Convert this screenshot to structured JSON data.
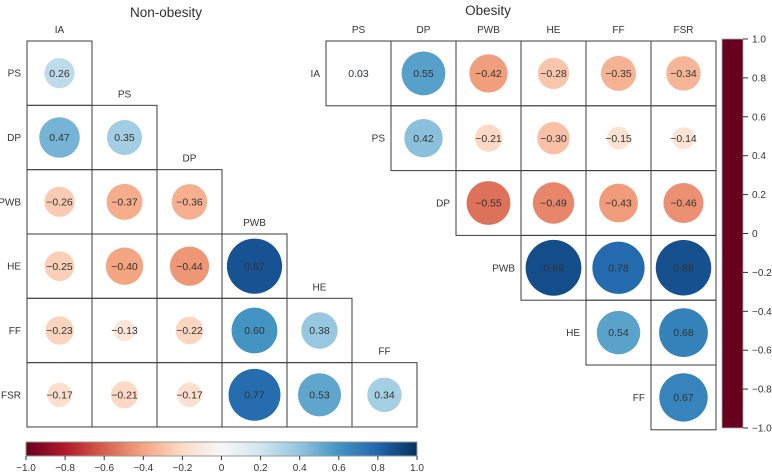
{
  "figure": {
    "background": "#ffffff",
    "grid_color": "#3d3d3d",
    "text_color": "#333333",
    "white_label_color": "#fdfdfd"
  },
  "chart_data": [
    {
      "type": "heatmap",
      "subtype": "correlation-bubble-matrix",
      "title": "Non-obesity",
      "triangle": "lower",
      "column_headers": [
        "IA",
        "PS",
        "DP",
        "PWB",
        "HE",
        "FF"
      ],
      "row_labels": [
        "PS",
        "DP",
        "PWB",
        "HE",
        "FF",
        "FSR"
      ],
      "rows": [
        [
          0.26
        ],
        [
          0.47,
          0.35
        ],
        [
          -0.26,
          -0.37,
          -0.36
        ],
        [
          -0.25,
          -0.4,
          -0.44,
          0.87
        ],
        [
          -0.23,
          -0.13,
          -0.22,
          0.6,
          0.38
        ],
        [
          -0.17,
          -0.21,
          -0.17,
          0.77,
          0.53,
          0.34
        ]
      ],
      "white_label_cells": [
        [
          3,
          3
        ],
        [
          4,
          3
        ],
        [
          5,
          3
        ]
      ]
    },
    {
      "type": "heatmap",
      "subtype": "correlation-bubble-matrix",
      "title": "Obesity",
      "triangle": "upper",
      "column_headers": [
        "PS",
        "DP",
        "PWB",
        "HE",
        "FF",
        "FSR"
      ],
      "row_labels": [
        "IA",
        "PS",
        "DP",
        "PWB",
        "HE",
        "FF"
      ],
      "rows": [
        [
          0.03,
          0.55,
          -0.42,
          -0.28,
          -0.35,
          -0.34
        ],
        [
          0.42,
          -0.21,
          -0.3,
          -0.15,
          -0.14
        ],
        [
          -0.55,
          -0.49,
          -0.43,
          -0.46
        ],
        [
          0.89,
          0.78,
          0.88
        ],
        [
          0.54,
          0.68
        ],
        [
          0.67
        ]
      ],
      "white_label_cells": [
        [
          3,
          0
        ],
        [
          3,
          1
        ],
        [
          3,
          2
        ]
      ]
    }
  ],
  "colormap": {
    "name": "RdBu",
    "domain": [
      -1,
      1
    ],
    "anchors": [
      "#67001f",
      "#b2182b",
      "#d6604d",
      "#f4a582",
      "#fddbc7",
      "#f7f7f7",
      "#d1e5f0",
      "#92c5de",
      "#4393c3",
      "#2166ac",
      "#053061"
    ]
  },
  "colorbar_horizontal": {
    "min": -1.0,
    "max": 1.0,
    "tick_labels": [
      "−1.0",
      "−0.8",
      "−0.6",
      "−0.4",
      "−0.2",
      "0",
      "0.2",
      "0.4",
      "0.6",
      "0.8",
      "1.0"
    ]
  },
  "colorbar_vertical": {
    "min": -1.0,
    "max": 1.0,
    "tick_labels": [
      "1.0",
      "0.8",
      "0.6",
      "0.4",
      "0.2",
      "0",
      "−0.2",
      "−0.4",
      "−0.6",
      "−0.8",
      "−1.0"
    ]
  }
}
